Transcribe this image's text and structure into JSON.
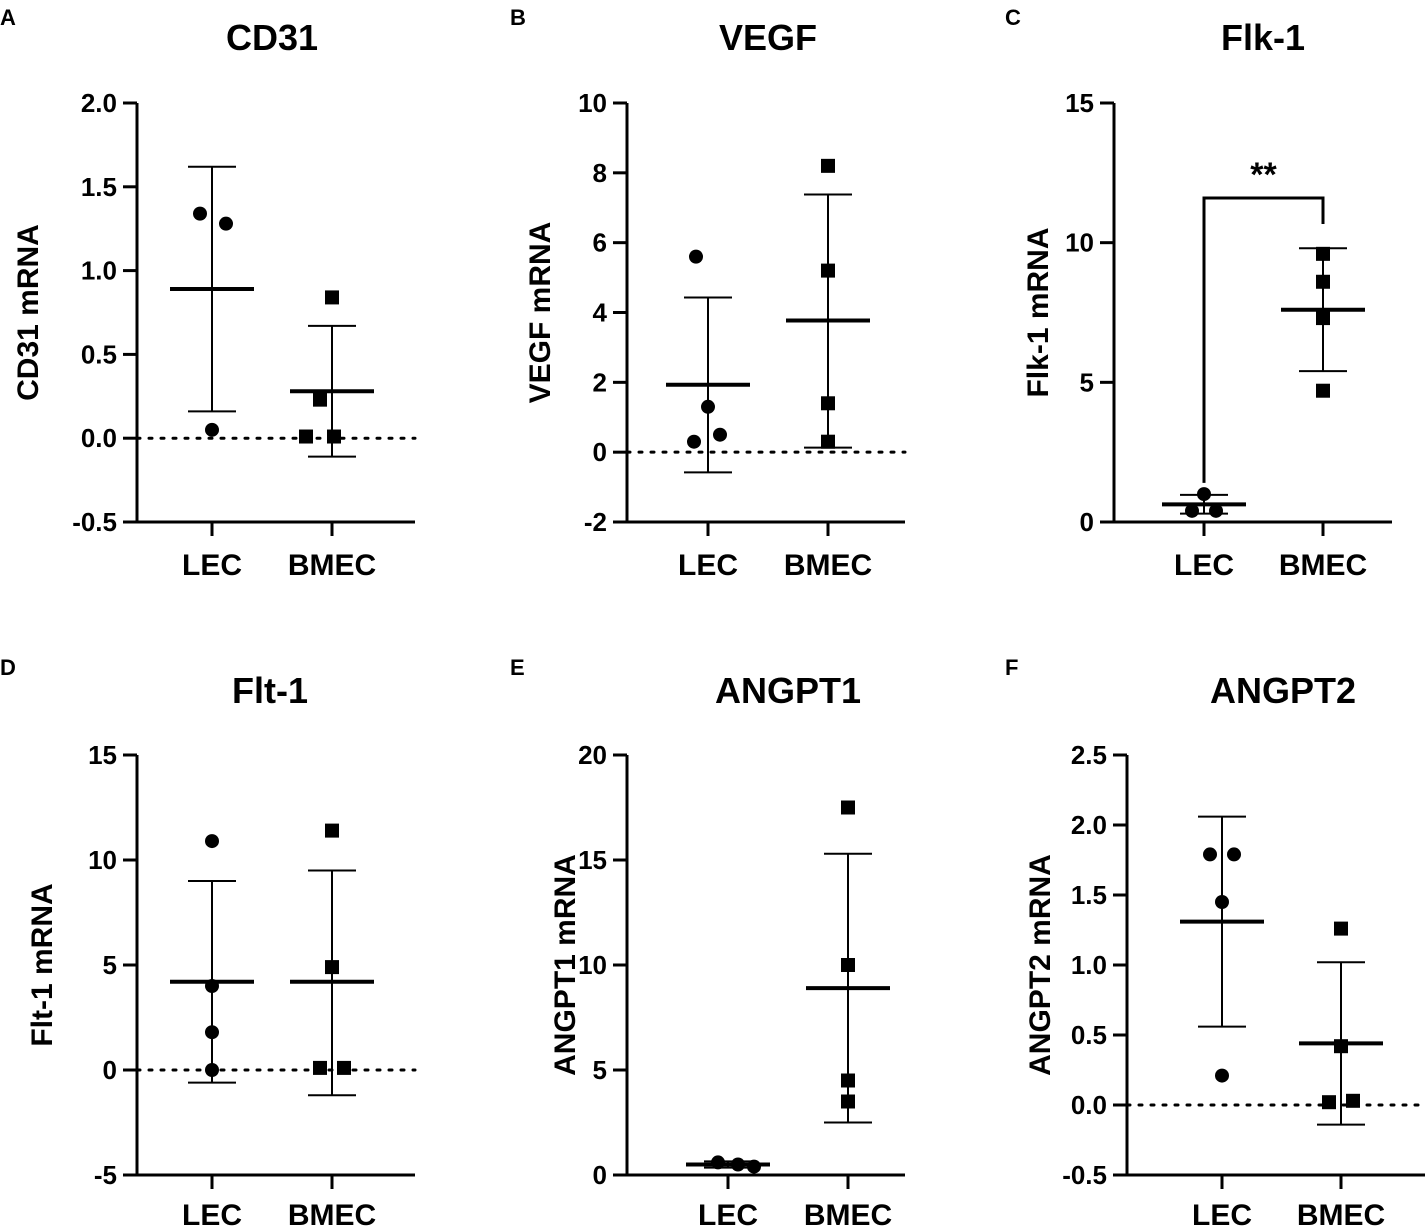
{
  "chart_data": [
    {
      "panel": "A",
      "type": "scatter",
      "title": "CD31",
      "ylabel": "CD31 mRNA",
      "xlabel": "",
      "categories": [
        "LEC",
        "BMEC"
      ],
      "ylim": [
        -0.5,
        2.0
      ],
      "yticks": [
        -0.5,
        0.0,
        0.5,
        1.0,
        1.5,
        2.0
      ],
      "ytick_labels": [
        "-0.5",
        "0.0",
        "0.5",
        "1.0",
        "1.5",
        "2.0"
      ],
      "zero_line": true,
      "series": [
        {
          "name": "LEC",
          "marker": "circle",
          "points": [
            1.34,
            1.28,
            0.05
          ],
          "mean": 0.89,
          "sd_low": 0.16,
          "sd_high": 1.62
        },
        {
          "name": "BMEC",
          "marker": "square",
          "points": [
            0.84,
            0.23,
            0.01,
            0.01
          ],
          "mean": 0.28,
          "sd_low": -0.11,
          "sd_high": 0.67
        }
      ]
    },
    {
      "panel": "B",
      "type": "scatter",
      "title": "VEGF",
      "ylabel": "VEGF mRNA",
      "xlabel": "",
      "categories": [
        "LEC",
        "BMEC"
      ],
      "ylim": [
        -2,
        10
      ],
      "yticks": [
        -2,
        0,
        2,
        4,
        6,
        8,
        10
      ],
      "ytick_labels": [
        "-2",
        "0",
        "2",
        "4",
        "6",
        "8",
        "10"
      ],
      "zero_line": true,
      "series": [
        {
          "name": "LEC",
          "marker": "circle",
          "points": [
            5.6,
            1.3,
            0.5,
            0.3
          ],
          "mean": 1.93,
          "sd_low": -0.58,
          "sd_high": 4.43
        },
        {
          "name": "BMEC",
          "marker": "square",
          "points": [
            8.2,
            5.2,
            1.4,
            0.3
          ],
          "mean": 3.77,
          "sd_low": 0.13,
          "sd_high": 7.38
        }
      ]
    },
    {
      "panel": "C",
      "type": "scatter",
      "title": "Flk-1",
      "ylabel": "Flk-1 mRNA",
      "xlabel": "",
      "categories": [
        "LEC",
        "BMEC"
      ],
      "ylim": [
        0,
        15
      ],
      "yticks": [
        0,
        5,
        10,
        15
      ],
      "ytick_labels": [
        "0",
        "5",
        "10",
        "15"
      ],
      "zero_line": false,
      "significance": {
        "label": "**",
        "bracket_y": 11.6
      },
      "series": [
        {
          "name": "LEC",
          "marker": "circle",
          "points": [
            1.0,
            0.4,
            0.4
          ],
          "mean": 0.63,
          "sd_low": 0.3,
          "sd_high": 0.97
        },
        {
          "name": "BMEC",
          "marker": "square",
          "points": [
            9.6,
            8.6,
            7.3,
            4.7
          ],
          "mean": 7.6,
          "sd_low": 5.4,
          "sd_high": 9.8
        }
      ]
    },
    {
      "panel": "D",
      "type": "scatter",
      "title": "Flt-1",
      "ylabel": "Flt-1 mRNA",
      "xlabel": "",
      "categories": [
        "LEC",
        "BMEC"
      ],
      "ylim": [
        -5,
        15
      ],
      "yticks": [
        -5,
        0,
        5,
        10,
        15
      ],
      "ytick_labels": [
        "-5",
        "0",
        "5",
        "10",
        "15"
      ],
      "zero_line": true,
      "series": [
        {
          "name": "LEC",
          "marker": "circle",
          "points": [
            10.9,
            4.0,
            1.8,
            0.0
          ],
          "mean": 4.2,
          "sd_low": -0.6,
          "sd_high": 9.0
        },
        {
          "name": "BMEC",
          "marker": "square",
          "points": [
            11.4,
            4.9,
            0.1,
            0.1
          ],
          "mean": 4.2,
          "sd_low": -1.2,
          "sd_high": 9.5
        }
      ]
    },
    {
      "panel": "E",
      "type": "scatter",
      "title": "ANGPT1",
      "ylabel": "ANGPT1 mRNA",
      "xlabel": "",
      "categories": [
        "LEC",
        "BMEC"
      ],
      "ylim": [
        0,
        20
      ],
      "yticks": [
        0,
        5,
        10,
        15,
        20
      ],
      "ytick_labels": [
        "0",
        "5",
        "10",
        "15",
        "20"
      ],
      "zero_line": false,
      "series": [
        {
          "name": "LEC",
          "marker": "circle",
          "points": [
            0.6,
            0.5,
            0.4
          ],
          "mean": 0.5,
          "sd_low": 0.35,
          "sd_high": 0.65
        },
        {
          "name": "BMEC",
          "marker": "square",
          "points": [
            17.5,
            10.0,
            4.5,
            3.5
          ],
          "mean": 8.9,
          "sd_low": 2.5,
          "sd_high": 15.3
        }
      ]
    },
    {
      "panel": "F",
      "type": "scatter",
      "title": "ANGPT2",
      "ylabel": "ANGPT2 mRNA",
      "xlabel": "",
      "categories": [
        "LEC",
        "BMEC"
      ],
      "ylim": [
        -0.5,
        2.5
      ],
      "yticks": [
        -0.5,
        0.0,
        0.5,
        1.0,
        1.5,
        2.0,
        2.5
      ],
      "ytick_labels": [
        "-0.5",
        "0.0",
        "0.5",
        "1.0",
        "1.5",
        "2.0",
        "2.5"
      ],
      "zero_line": true,
      "series": [
        {
          "name": "LEC",
          "marker": "circle",
          "points": [
            1.79,
            1.79,
            1.45,
            0.21
          ],
          "mean": 1.31,
          "sd_low": 0.56,
          "sd_high": 2.06
        },
        {
          "name": "BMEC",
          "marker": "square",
          "points": [
            1.26,
            0.42,
            0.02,
            0.03
          ],
          "mean": 0.44,
          "sd_low": -0.14,
          "sd_high": 1.02
        }
      ]
    }
  ]
}
